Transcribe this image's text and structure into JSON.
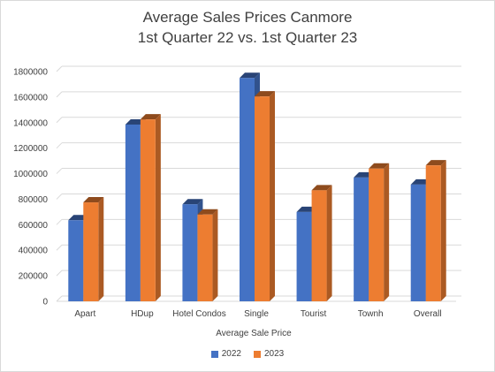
{
  "chart_data": {
    "type": "bar",
    "title": "Average Sales Prices Canmore",
    "subtitle": "1st Quarter 22 vs. 1st Quarter 23",
    "xlabel": "Average Sale Price",
    "ylabel": "",
    "categories": [
      "Apart",
      "HDup",
      "Hotel Condos",
      "Single",
      "Tourist",
      "Townh",
      "Overall"
    ],
    "series": [
      {
        "name": "2022",
        "color": "#4472c4",
        "values": [
          635000,
          1385000,
          760000,
          1750000,
          700000,
          970000,
          915000
        ]
      },
      {
        "name": "2023",
        "color": "#ed7d31",
        "values": [
          775000,
          1425000,
          680000,
          1605000,
          870000,
          1040000,
          1065000
        ]
      }
    ],
    "ylim": [
      0,
      1800000
    ],
    "yticks": [
      0,
      200000,
      400000,
      600000,
      800000,
      1000000,
      1200000,
      1400000,
      1600000,
      1800000
    ],
    "grid": true,
    "legend": "bottom-center"
  }
}
